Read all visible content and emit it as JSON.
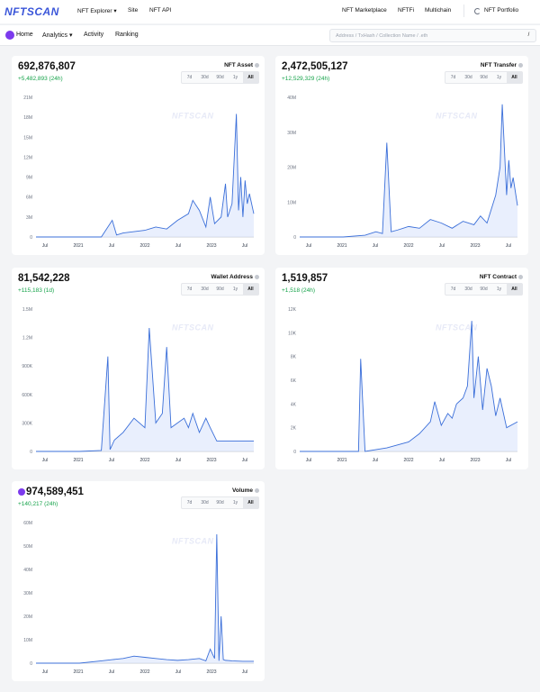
{
  "header": {
    "logo": "NFTSCAN",
    "nav": {
      "explorer": "NFT Explorer",
      "site": "Site",
      "api": "NFT API",
      "marketplace": "NFT Marketplace",
      "nftfi": "NFTFi",
      "multichain": "Multichain",
      "portfolio": "NFT Portfolio"
    }
  },
  "navbar": {
    "home": "Home",
    "analytics": "Analytics",
    "activity": "Activity",
    "ranking": "Ranking",
    "search_placeholder": "Address / TxHash / Collection Name / .eth",
    "search_shortcut": "/"
  },
  "watermark": "NFTSCAN",
  "range_options": [
    "7d",
    "30d",
    "90d",
    "1y",
    "All"
  ],
  "active_range": "All",
  "cards": [
    {
      "value": "692,876,807",
      "delta": "+5,482,893 (24h)",
      "title": "NFT Asset",
      "chart_data": {
        "type": "line",
        "y_ticks": [
          "0",
          "3M",
          "6M",
          "9M",
          "12M",
          "15M",
          "18M",
          "21M"
        ],
        "ylim": [
          0,
          21000000
        ],
        "x_ticks": [
          "Jul",
          "2021",
          "Jul",
          "2022",
          "Jul",
          "2023",
          "Jul"
        ],
        "series": [
          {
            "x": [
              0,
              0.1,
              0.2,
              0.3,
              0.35,
              0.37,
              0.4,
              0.5,
              0.55,
              0.6,
              0.65,
              0.7,
              0.72,
              0.75,
              0.78,
              0.8,
              0.82,
              0.85,
              0.87,
              0.88,
              0.9,
              0.92,
              0.93,
              0.94,
              0.95,
              0.96,
              0.97,
              0.98,
              1.0
            ],
            "y": [
              0,
              0,
              0,
              0,
              2500000,
              300000,
              600000,
              1000000,
              1500000,
              1200000,
              2500000,
              3500000,
              5500000,
              4000000,
              1500000,
              6000000,
              2000000,
              3000000,
              8000000,
              3000000,
              5000000,
              18500000,
              4000000,
              9000000,
              3000000,
              8500000,
              5000000,
              6500000,
              3500000
            ]
          }
        ]
      }
    },
    {
      "value": "2,472,505,127",
      "delta": "+12,529,329 (24h)",
      "title": "NFT Transfer",
      "chart_data": {
        "type": "line",
        "y_ticks": [
          "0",
          "10M",
          "20M",
          "30M",
          "40M"
        ],
        "ylim": [
          0,
          40000000
        ],
        "x_ticks": [
          "Jul",
          "2021",
          "Jul",
          "2022",
          "Jul",
          "2023",
          "Jul"
        ],
        "series": [
          {
            "x": [
              0,
              0.2,
              0.3,
              0.35,
              0.38,
              0.4,
              0.42,
              0.45,
              0.5,
              0.55,
              0.6,
              0.65,
              0.7,
              0.75,
              0.8,
              0.83,
              0.86,
              0.88,
              0.9,
              0.92,
              0.93,
              0.95,
              0.96,
              0.97,
              0.98,
              1.0
            ],
            "y": [
              0,
              0,
              500000,
              1500000,
              1000000,
              27000000,
              1500000,
              2000000,
              3000000,
              2500000,
              5000000,
              4000000,
              2500000,
              4500000,
              3500000,
              6000000,
              4000000,
              8000000,
              12000000,
              20000000,
              38000000,
              12000000,
              22000000,
              14000000,
              17000000,
              9000000
            ]
          }
        ]
      }
    },
    {
      "value": "81,542,228",
      "delta": "+115,183 (1d)",
      "title": "Wallet Address",
      "chart_data": {
        "type": "line",
        "y_ticks": [
          "0",
          "300K",
          "600K",
          "900K",
          "1.2M",
          "1.5M"
        ],
        "ylim": [
          0,
          1500000
        ],
        "x_ticks": [
          "Jul",
          "2021",
          "Jul",
          "2022",
          "Jul",
          "2023",
          "Jul"
        ],
        "series": [
          {
            "x": [
              0,
              0.2,
              0.3,
              0.33,
              0.34,
              0.36,
              0.4,
              0.45,
              0.5,
              0.52,
              0.55,
              0.58,
              0.6,
              0.62,
              0.65,
              0.68,
              0.7,
              0.72,
              0.75,
              0.78,
              0.8,
              0.83,
              0.86,
              0.9,
              1.0
            ],
            "y": [
              0,
              0,
              10000,
              1000000,
              20000,
              120000,
              200000,
              350000,
              250000,
              1300000,
              300000,
              400000,
              1100000,
              250000,
              300000,
              350000,
              250000,
              400000,
              200000,
              350000,
              250000,
              110000,
              110000,
              110000,
              110000
            ]
          }
        ]
      }
    },
    {
      "value": "1,519,857",
      "delta": "+1,518 (24h)",
      "title": "NFT Contract",
      "chart_data": {
        "type": "line",
        "y_ticks": [
          "0",
          "2K",
          "4K",
          "6K",
          "8K",
          "10K",
          "12K"
        ],
        "ylim": [
          0,
          12000
        ],
        "x_ticks": [
          "Jul",
          "2021",
          "Jul",
          "2022",
          "Jul",
          "2023",
          "Jul"
        ],
        "series": [
          {
            "x": [
              0,
              0.2,
              0.27,
              0.28,
              0.3,
              0.4,
              0.5,
              0.55,
              0.6,
              0.62,
              0.65,
              0.68,
              0.7,
              0.72,
              0.75,
              0.77,
              0.79,
              0.8,
              0.82,
              0.84,
              0.86,
              0.88,
              0.9,
              0.92,
              0.95,
              1.0
            ],
            "y": [
              0,
              0,
              0,
              7800,
              0,
              300,
              800,
              1500,
              2500,
              4200,
              2200,
              3200,
              2800,
              4000,
              4500,
              5500,
              11000,
              4500,
              8000,
              3500,
              7000,
              5500,
              3000,
              4500,
              2000,
              2500
            ]
          }
        ]
      }
    },
    {
      "value": "974,589,451",
      "delta": "+140,217 (24h)",
      "title": "Volume",
      "chart_data": {
        "type": "line",
        "y_ticks": [
          "0",
          "10M",
          "20M",
          "30M",
          "40M",
          "50M",
          "60M"
        ],
        "ylim": [
          0,
          60000000
        ],
        "x_ticks": [
          "Jul",
          "2021",
          "Jul",
          "2022",
          "Jul",
          "2023",
          "Jul"
        ],
        "series": [
          {
            "x": [
              0,
              0.2,
              0.3,
              0.35,
              0.4,
              0.45,
              0.5,
              0.55,
              0.6,
              0.65,
              0.7,
              0.75,
              0.78,
              0.8,
              0.82,
              0.83,
              0.84,
              0.85,
              0.86,
              0.87,
              0.9,
              0.95,
              1.0
            ],
            "y": [
              0,
              0,
              1000000,
              1500000,
              2000000,
              3000000,
              2500000,
              2000000,
              1500000,
              1200000,
              1500000,
              2000000,
              1000000,
              6000000,
              2000000,
              55000000,
              1000000,
              20000000,
              1500000,
              1200000,
              1000000,
              800000,
              800000
            ]
          }
        ]
      }
    }
  ]
}
